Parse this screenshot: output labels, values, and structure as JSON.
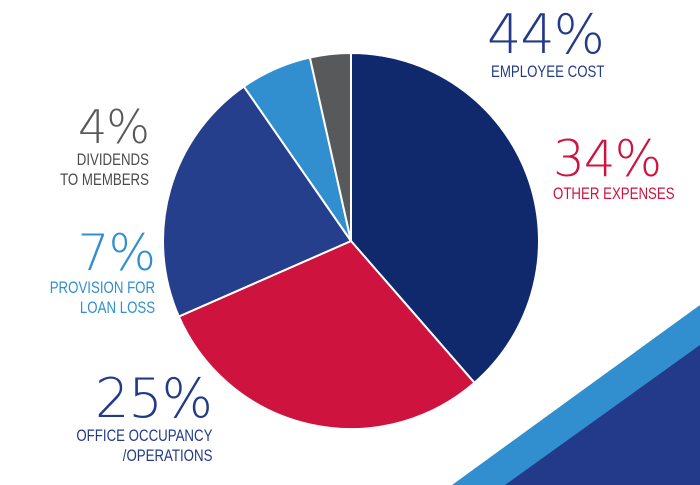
{
  "chart_data": {
    "type": "pie",
    "start_angle_deg": 270,
    "direction": "clockwise",
    "slices": [
      {
        "percent_label": "44%",
        "label_lines": [
          "EMPLOYEE COST"
        ],
        "value": 44,
        "color": "#10296c"
      },
      {
        "percent_label": "34%",
        "label_lines": [
          "OTHER EXPENSES"
        ],
        "value": 34,
        "color": "#ce133e"
      },
      {
        "percent_label": "25%",
        "label_lines": [
          "OFFICE OCCUPANCY",
          "/OPERATIONS"
        ],
        "value": 25,
        "color": "#263f8c"
      },
      {
        "percent_label": "7%",
        "label_lines": [
          "PROVISION FOR",
          "LOAN LOSS"
        ],
        "value": 7,
        "color": "#318fcf"
      },
      {
        "percent_label": "4%",
        "label_lines": [
          "DIVIDENDS",
          "TO MEMBERS"
        ],
        "value": 4,
        "color": "#58595b"
      }
    ]
  },
  "colors": {
    "background": "#ffffff",
    "decor_light_blue": "#318fcf",
    "decor_dark_blue": "#233a8a"
  }
}
